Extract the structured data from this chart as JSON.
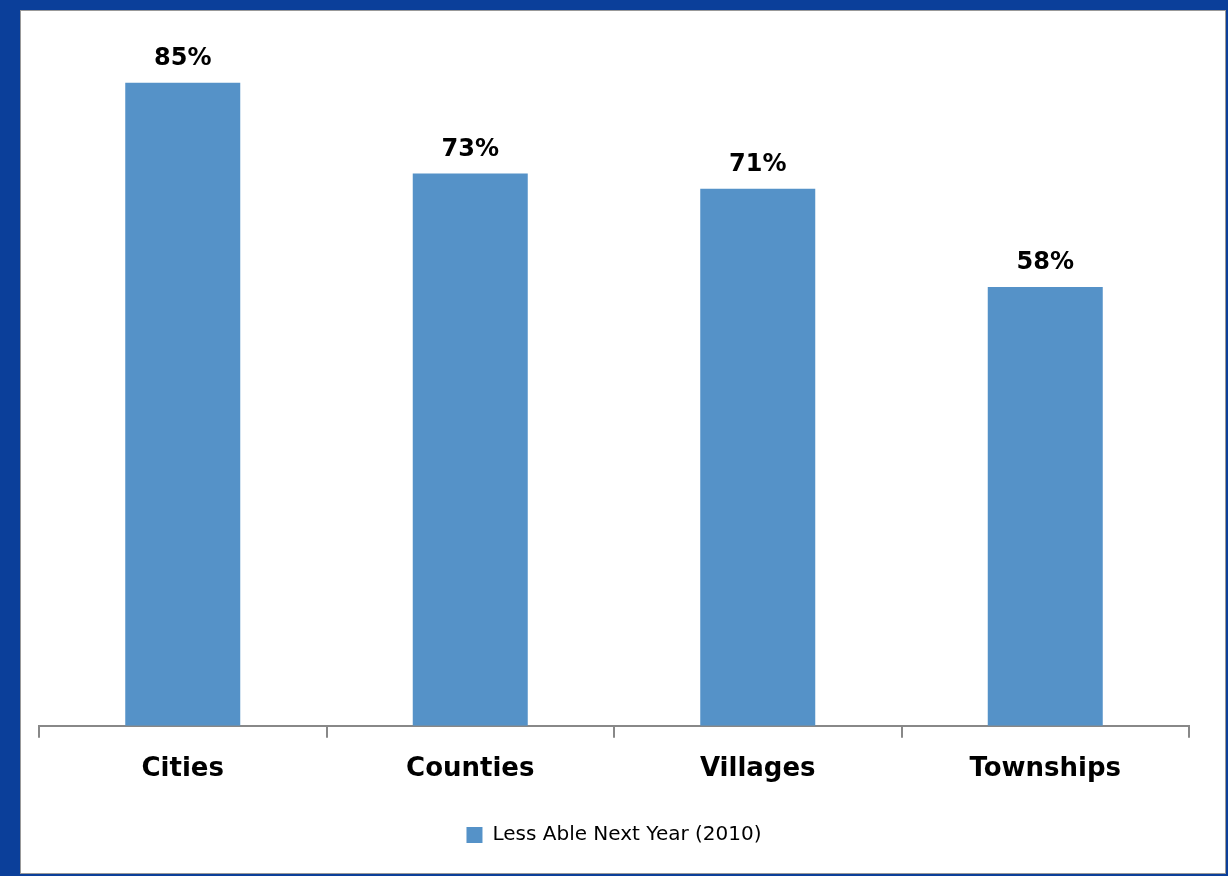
{
  "chart_data": {
    "type": "bar",
    "categories": [
      "Cities",
      "Counties",
      "Villages",
      "Townships"
    ],
    "series": [
      {
        "name": "Less Able Next Year (2010)",
        "color": "#5592c8",
        "values": [
          85,
          73,
          71,
          58
        ],
        "value_labels": [
          "85%",
          "73%",
          "71%",
          "58%"
        ]
      }
    ],
    "legend": "bottom",
    "grid": false,
    "tick_labels": "x"
  }
}
